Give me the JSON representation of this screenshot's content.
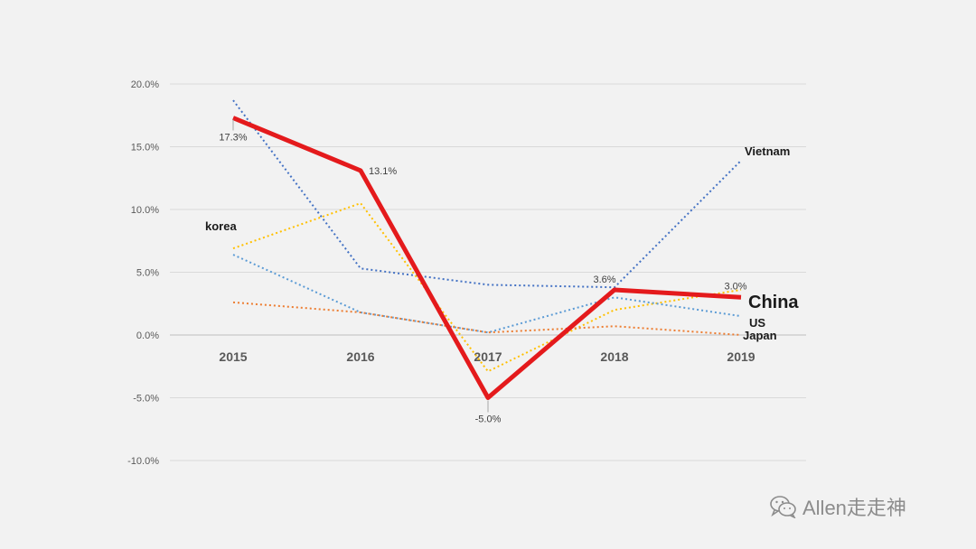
{
  "chart_data": {
    "type": "line",
    "title": "",
    "xlabel": "",
    "ylabel": "",
    "categories": [
      "2015",
      "2016",
      "2017",
      "2018",
      "2019"
    ],
    "ylim": [
      -10,
      20
    ],
    "yticks": [
      20,
      15,
      10,
      5,
      0,
      -5,
      -10
    ],
    "ytick_labels": [
      "20.0%",
      "15.0%",
      "10.0%",
      "5.0%",
      "0.0%",
      "-5.0%",
      "-10.0%"
    ],
    "grid": true,
    "series": [
      {
        "name": "Vietnam",
        "values": [
          18.7,
          5.3,
          4.0,
          3.8,
          13.9
        ],
        "color": "#4472c4",
        "style": "dotted"
      },
      {
        "name": "korea",
        "values": [
          6.9,
          10.5,
          -2.9,
          2.0,
          3.6
        ],
        "color": "#ffc000",
        "style": "dotted"
      },
      {
        "name": "US",
        "values": [
          6.4,
          1.8,
          0.2,
          3.0,
          1.5
        ],
        "color": "#5b9bd5",
        "style": "dotted"
      },
      {
        "name": "Japan",
        "values": [
          2.6,
          1.8,
          0.2,
          0.7,
          0.0
        ],
        "color": "#ed7d31",
        "style": "dotted"
      },
      {
        "name": "China",
        "values": [
          17.3,
          13.1,
          -5.0,
          3.6,
          3.0
        ],
        "color": "#e41a1c",
        "style": "solid",
        "data_labels": [
          "17.3%",
          "13.1%",
          "-5.0%",
          "3.6%",
          "3.0%"
        ]
      }
    ]
  },
  "watermark": {
    "text": "Allen走走神",
    "icon": "wechat-icon"
  }
}
